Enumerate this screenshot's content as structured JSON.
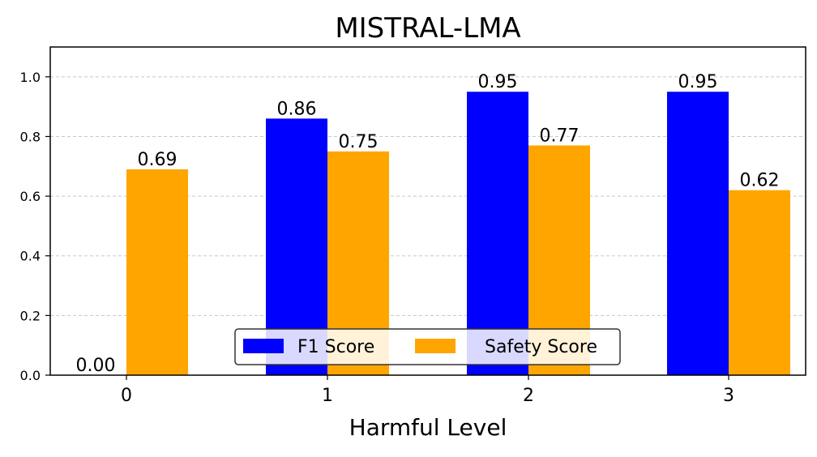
{
  "chart_data": {
    "type": "bar",
    "title": "MISTRAL-LMA",
    "xlabel": "Harmful Level",
    "ylabel": "",
    "categories": [
      "0",
      "1",
      "2",
      "3"
    ],
    "series": [
      {
        "name": "F1 Score",
        "color": "#0000ff",
        "values": [
          0.0,
          0.86,
          0.95,
          0.95
        ],
        "labels": [
          "0.00",
          "0.86",
          "0.95",
          "0.95"
        ]
      },
      {
        "name": "Safety Score",
        "color": "#ffa500",
        "values": [
          0.69,
          0.75,
          0.77,
          0.62
        ],
        "labels": [
          "0.69",
          "0.75",
          "0.77",
          "0.62"
        ]
      }
    ],
    "ylim": [
      0,
      1.1
    ],
    "yticks": [
      0.0,
      0.2,
      0.4,
      0.6,
      0.8,
      1.0
    ],
    "ytick_labels": [
      "0.0",
      "0.2",
      "0.4",
      "0.6",
      "0.8",
      "1.0"
    ],
    "grid": "y-dashed",
    "legend_position": "bottom-center"
  }
}
